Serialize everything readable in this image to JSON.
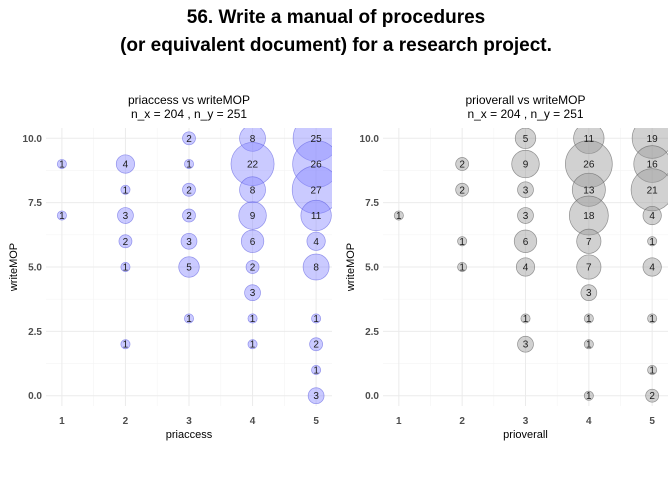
{
  "title_line1": "56. Write a manual of procedures",
  "title_line2": "(or equivalent document) for a research project.",
  "chart_data": [
    {
      "type": "scatter",
      "title_line1": "priaccess vs writeMOP",
      "title_line2": "n_x = 204 , n_y = 251",
      "xlabel": "priaccess",
      "ylabel": "writeMOP",
      "xlim": [
        0.75,
        5.25
      ],
      "ylim": [
        -0.4,
        10.4
      ],
      "x_ticks": [
        1,
        2,
        3,
        4,
        5
      ],
      "y_ticks": [
        0.0,
        2.5,
        5.0,
        7.5,
        10.0
      ],
      "y_tick_labels": [
        "0.0",
        "2.5",
        "5.0",
        "7.5",
        "10.0"
      ],
      "grid": true,
      "fill": "#8a8aff",
      "stroke": "#5a5ae0",
      "points": [
        {
          "x": 1,
          "y": 9,
          "n": 1
        },
        {
          "x": 1,
          "y": 7,
          "n": 1
        },
        {
          "x": 2,
          "y": 9,
          "n": 4
        },
        {
          "x": 2,
          "y": 8,
          "n": 1
        },
        {
          "x": 2,
          "y": 7,
          "n": 3
        },
        {
          "x": 2,
          "y": 6,
          "n": 2
        },
        {
          "x": 2,
          "y": 5,
          "n": 1
        },
        {
          "x": 2,
          "y": 2,
          "n": 1
        },
        {
          "x": 3,
          "y": 10,
          "n": 2
        },
        {
          "x": 3,
          "y": 9,
          "n": 1
        },
        {
          "x": 3,
          "y": 8,
          "n": 2
        },
        {
          "x": 3,
          "y": 7,
          "n": 2
        },
        {
          "x": 3,
          "y": 6,
          "n": 3
        },
        {
          "x": 3,
          "y": 5,
          "n": 5
        },
        {
          "x": 3,
          "y": 3,
          "n": 1
        },
        {
          "x": 4,
          "y": 10,
          "n": 8
        },
        {
          "x": 4,
          "y": 9,
          "n": 22
        },
        {
          "x": 4,
          "y": 8,
          "n": 8
        },
        {
          "x": 4,
          "y": 7,
          "n": 9
        },
        {
          "x": 4,
          "y": 6,
          "n": 6
        },
        {
          "x": 4,
          "y": 5,
          "n": 2
        },
        {
          "x": 4,
          "y": 4,
          "n": 3
        },
        {
          "x": 4,
          "y": 3,
          "n": 1
        },
        {
          "x": 4,
          "y": 2,
          "n": 1
        },
        {
          "x": 5,
          "y": 10,
          "n": 25
        },
        {
          "x": 5,
          "y": 9,
          "n": 26
        },
        {
          "x": 5,
          "y": 8,
          "n": 27
        },
        {
          "x": 5,
          "y": 7,
          "n": 11
        },
        {
          "x": 5,
          "y": 6,
          "n": 4
        },
        {
          "x": 5,
          "y": 5,
          "n": 8
        },
        {
          "x": 5,
          "y": 3,
          "n": 1
        },
        {
          "x": 5,
          "y": 2,
          "n": 2
        },
        {
          "x": 5,
          "y": 1,
          "n": 1
        },
        {
          "x": 5,
          "y": 0,
          "n": 3
        }
      ]
    },
    {
      "type": "scatter",
      "title_line1": "prioverall vs writeMOP",
      "title_line2": "n_x = 204 , n_y = 251",
      "xlabel": "prioverall",
      "ylabel": "writeMOP",
      "xlim": [
        0.75,
        5.25
      ],
      "ylim": [
        -0.4,
        10.4
      ],
      "x_ticks": [
        1,
        2,
        3,
        4,
        5
      ],
      "y_ticks": [
        0.0,
        2.5,
        5.0,
        7.5,
        10.0
      ],
      "y_tick_labels": [
        "0.0",
        "2.5",
        "5.0",
        "7.5",
        "10.0"
      ],
      "grid": true,
      "fill": "#9a9a9a",
      "stroke": "#555555",
      "points": [
        {
          "x": 1,
          "y": 7,
          "n": 1
        },
        {
          "x": 2,
          "y": 9,
          "n": 2
        },
        {
          "x": 2,
          "y": 8,
          "n": 2
        },
        {
          "x": 2,
          "y": 6,
          "n": 1
        },
        {
          "x": 2,
          "y": 5,
          "n": 1
        },
        {
          "x": 3,
          "y": 10,
          "n": 5
        },
        {
          "x": 3,
          "y": 9,
          "n": 9
        },
        {
          "x": 3,
          "y": 8,
          "n": 3
        },
        {
          "x": 3,
          "y": 7,
          "n": 3
        },
        {
          "x": 3,
          "y": 6,
          "n": 6
        },
        {
          "x": 3,
          "y": 5,
          "n": 4
        },
        {
          "x": 3,
          "y": 3,
          "n": 1
        },
        {
          "x": 3,
          "y": 2,
          "n": 3
        },
        {
          "x": 4,
          "y": 10,
          "n": 11
        },
        {
          "x": 4,
          "y": 9,
          "n": 26
        },
        {
          "x": 4,
          "y": 8,
          "n": 13
        },
        {
          "x": 4,
          "y": 7,
          "n": 18
        },
        {
          "x": 4,
          "y": 6,
          "n": 7
        },
        {
          "x": 4,
          "y": 5,
          "n": 7
        },
        {
          "x": 4,
          "y": 4,
          "n": 3
        },
        {
          "x": 4,
          "y": 3,
          "n": 1
        },
        {
          "x": 4,
          "y": 2,
          "n": 1
        },
        {
          "x": 4,
          "y": 0,
          "n": 1
        },
        {
          "x": 5,
          "y": 10,
          "n": 19
        },
        {
          "x": 5,
          "y": 9,
          "n": 16
        },
        {
          "x": 5,
          "y": 8,
          "n": 21
        },
        {
          "x": 5,
          "y": 7,
          "n": 4
        },
        {
          "x": 5,
          "y": 6,
          "n": 1
        },
        {
          "x": 5,
          "y": 5,
          "n": 4
        },
        {
          "x": 5,
          "y": 3,
          "n": 1
        },
        {
          "x": 5,
          "y": 1,
          "n": 1
        },
        {
          "x": 5,
          "y": 0,
          "n": 2
        }
      ]
    }
  ]
}
